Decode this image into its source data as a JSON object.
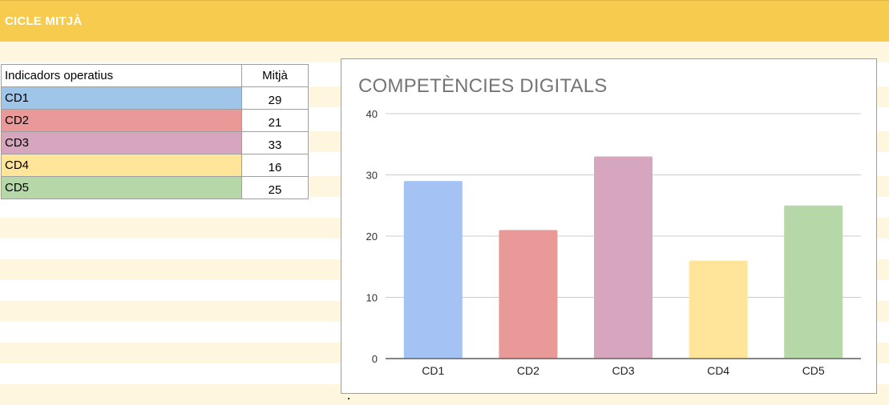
{
  "header": {
    "title": "CICLE MITJÀ"
  },
  "table": {
    "headers": [
      "Indicadors operatius",
      "Mitjà"
    ],
    "rows": [
      {
        "label": "CD1",
        "value": "29",
        "color": "#9fc5e8"
      },
      {
        "label": "CD2",
        "value": "21",
        "color": "#ea9999"
      },
      {
        "label": "CD3",
        "value": "33",
        "color": "#d5a6bd"
      },
      {
        "label": "CD4",
        "value": "16",
        "color": "#ffe599"
      },
      {
        "label": "CD5",
        "value": "25",
        "color": "#b6d7a8"
      }
    ]
  },
  "chart_data": {
    "type": "bar",
    "title": "COMPETÈNCIES DIGITALS",
    "categories": [
      "CD1",
      "CD2",
      "CD3",
      "CD4",
      "CD5"
    ],
    "values": [
      29,
      21,
      33,
      16,
      25
    ],
    "colors": [
      "#a4c2f4",
      "#ea9999",
      "#d5a6bd",
      "#ffe599",
      "#b6d7a8"
    ],
    "ylim": [
      0,
      40
    ],
    "yticks": [
      0,
      10,
      20,
      30,
      40
    ],
    "grid": true,
    "legend": "none"
  }
}
